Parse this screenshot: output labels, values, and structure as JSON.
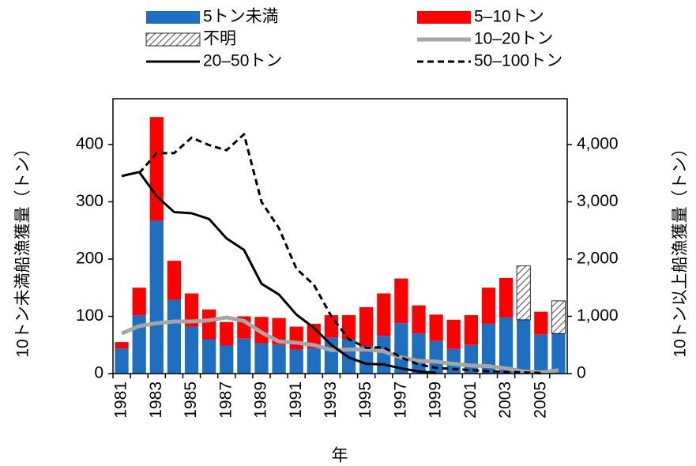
{
  "chart_data": {
    "type": "bar",
    "stacked": true,
    "x_label": "年",
    "y_label": "10トン未満船漁獲量（トン）",
    "y2_label": "10トン以上船漁獲量（トン）",
    "categories": [
      "1981",
      null,
      "1983",
      null,
      "1985",
      null,
      "1987",
      null,
      "1989",
      null,
      "1991",
      null,
      "1993",
      null,
      "1995",
      null,
      "1997",
      null,
      "1999",
      null,
      "2001",
      null,
      "2003",
      null,
      "2005",
      null
    ],
    "ylim": [
      0,
      480
    ],
    "yticks": [
      0,
      100,
      200,
      300,
      400
    ],
    "y2lim": [
      0,
      4800
    ],
    "y2ticks": [
      0,
      {
        "value": 1000,
        "label": "1,000"
      },
      {
        "value": 2000,
        "label": "2,000"
      },
      {
        "value": 3000,
        "label": "3,000"
      },
      {
        "value": 4000,
        "label": "4,000"
      }
    ],
    "series": [
      {
        "name": "5トン未満",
        "type": "bar",
        "color": "#1f6fc0",
        "values": [
          44,
          102,
          267,
          129,
          82,
          60,
          49,
          61,
          53,
          50,
          42,
          44,
          63,
          60,
          48,
          66,
          88,
          70,
          57,
          43,
          50,
          87,
          98,
          94,
          68,
          70
        ]
      },
      {
        "name": "5–10トン",
        "type": "bar",
        "color": "#ff0000",
        "values": [
          11,
          48,
          181,
          68,
          58,
          52,
          41,
          39,
          46,
          47,
          40,
          43,
          39,
          42,
          68,
          74,
          78,
          49,
          46,
          51,
          52,
          63,
          69,
          null,
          40,
          null
        ]
      },
      {
        "name": "不明",
        "type": "bar",
        "color": "#808080",
        "pattern": "hatch",
        "values": [
          null,
          null,
          null,
          null,
          null,
          null,
          null,
          null,
          null,
          null,
          null,
          null,
          null,
          null,
          null,
          null,
          null,
          null,
          null,
          null,
          null,
          null,
          null,
          94,
          null,
          57
        ]
      },
      {
        "name": "10–20トン",
        "type": "line",
        "axis": "y2",
        "color": "#a6a6a6",
        "width": 5,
        "values": [
          700,
          830,
          880,
          910,
          910,
          930,
          980,
          920,
          720,
          560,
          540,
          500,
          410,
          420,
          420,
          390,
          280,
          220,
          210,
          170,
          140,
          130,
          90,
          40,
          20,
          60
        ]
      },
      {
        "name": "20–50トン",
        "type": "line",
        "axis": "y2",
        "color": "#000000",
        "width": 3,
        "values": [
          3450,
          3520,
          3100,
          2820,
          2800,
          2700,
          2360,
          2160,
          1570,
          1380,
          1030,
          800,
          500,
          280,
          170,
          160,
          90,
          40,
          10,
          null,
          null,
          null,
          null,
          null,
          null,
          null
        ]
      },
      {
        "name": "50–100トン",
        "type": "line",
        "axis": "y2",
        "color": "#000000",
        "width": 3,
        "dashed": true,
        "values": [
          null,
          3500,
          3850,
          3850,
          4120,
          3990,
          3900,
          4180,
          3000,
          2540,
          1830,
          1550,
          1000,
          600,
          450,
          460,
          280,
          160,
          100,
          80,
          60,
          40,
          30,
          20,
          10,
          null
        ]
      }
    ]
  }
}
